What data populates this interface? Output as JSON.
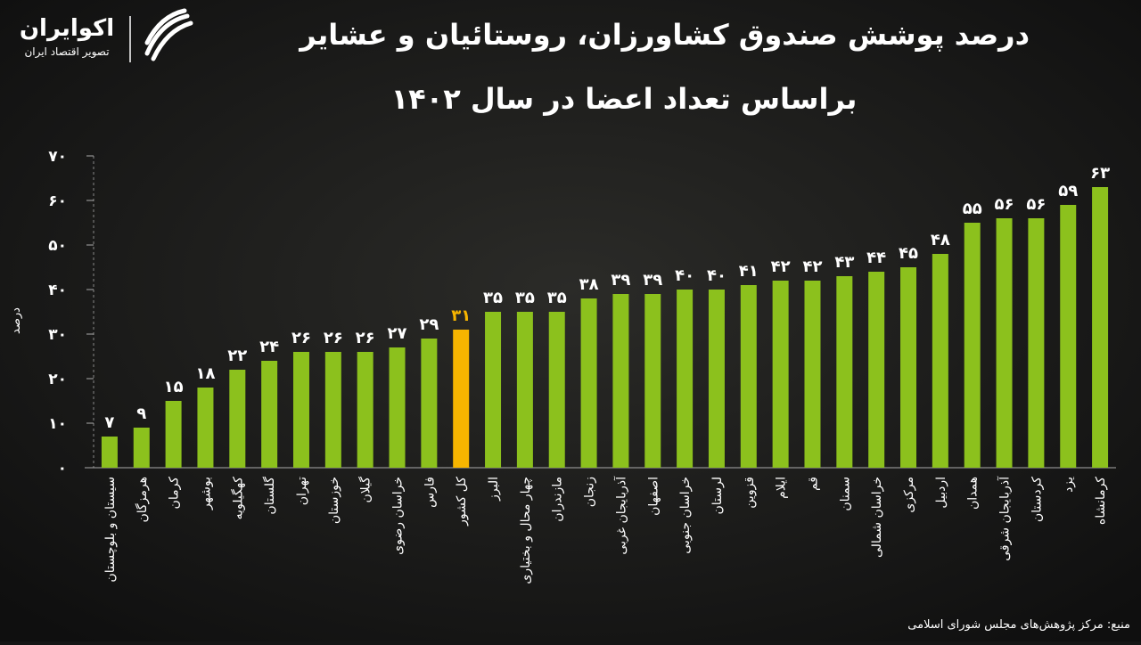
{
  "chart_data": {
    "type": "bar",
    "title": "درصد پوشش صندوق کشاورزان، روستائیان و عشایر",
    "subtitle": "براساس تعداد اعضا در سال ۱۴۰۲",
    "y_label": "درصد",
    "source": "منبع: مرکز پژوهش‌های مجلس شورای اسلامی",
    "brand": "اکوایران",
    "brand_tagline": "تصویر اقتصاد ایران",
    "categories": [
      "سیستان و بلوچستان",
      "هرمزگان",
      "کرمان",
      "بوشهر",
      "کهگیلویه",
      "گلستان",
      "تهران",
      "خوزستان",
      "گیلان",
      "خراسان رضوی",
      "فارس",
      "کل کشور",
      "البرز",
      "چهار محال و بختیاری",
      "مازندران",
      "زنجان",
      "آذربایجان غربی",
      "اصفهان",
      "خراسان جنوبی",
      "لرستان",
      "قزوین",
      "ایلام",
      "قم",
      "سمنان",
      "خراسان شمالی",
      "مرکزی",
      "اردبیل",
      "همدان",
      "آذربایجان شرقی",
      "کردستان",
      "یزد",
      "کرمانشاه"
    ],
    "values": [
      7,
      9,
      15,
      18,
      22,
      24,
      26,
      26,
      26,
      27,
      29,
      31,
      35,
      35,
      35,
      38,
      39,
      39,
      40,
      40,
      41,
      42,
      42,
      43,
      44,
      45,
      48,
      55,
      56,
      56,
      59,
      63
    ],
    "value_labels": [
      "۷",
      "۹",
      "۱۵",
      "۱۸",
      "۲۲",
      "۲۴",
      "۲۶",
      "۲۶",
      "۲۶",
      "۲۷",
      "۲۹",
      "۳۱",
      "۳۵",
      "۳۵",
      "۳۵",
      "۳۸",
      "۳۹",
      "۳۹",
      "۴۰",
      "۴۰",
      "۴۱",
      "۴۲",
      "۴۲",
      "۴۳",
      "۴۴",
      "۴۵",
      "۴۸",
      "۵۵",
      "۵۶",
      "۵۶",
      "۵۹",
      "۶۳"
    ],
    "colors": [
      "#8cc11d",
      "#8cc11d",
      "#8cc11d",
      "#8cc11d",
      "#8cc11d",
      "#8cc11d",
      "#8cc11d",
      "#8cc11d",
      "#8cc11d",
      "#8cc11d",
      "#8cc11d",
      "#f7b500",
      "#8cc11d",
      "#8cc11d",
      "#8cc11d",
      "#8cc11d",
      "#8cc11d",
      "#8cc11d",
      "#8cc11d",
      "#8cc11d",
      "#8cc11d",
      "#8cc11d",
      "#8cc11d",
      "#8cc11d",
      "#8cc11d",
      "#8cc11d",
      "#8cc11d",
      "#8cc11d",
      "#8cc11d",
      "#8cc11d",
      "#8cc11d",
      "#8cc11d"
    ],
    "ylim": [
      0,
      70
    ],
    "yticks": [
      {
        "value": 0,
        "label": "۰"
      },
      {
        "value": 10,
        "label": "۱۰"
      },
      {
        "value": 20,
        "label": "۲۰"
      },
      {
        "value": 30,
        "label": "۳۰"
      },
      {
        "value": 40,
        "label": "۴۰"
      },
      {
        "value": 50,
        "label": "۵۰"
      },
      {
        "value": 60,
        "label": "۶۰"
      },
      {
        "value": 70,
        "label": "۷۰"
      }
    ],
    "grid": false
  }
}
